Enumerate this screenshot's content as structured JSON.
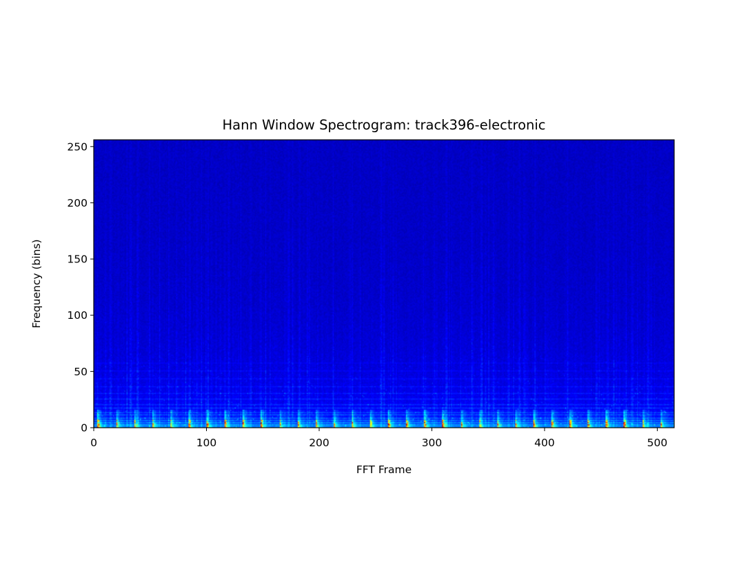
{
  "chart_data": {
    "type": "heatmap",
    "title": "Hann Window Spectrogram: track396-electronic",
    "xlabel": "FFT Frame",
    "ylabel": "Frequency (bins)",
    "xlim": [
      0,
      515
    ],
    "ylim": [
      0,
      256
    ],
    "xticks": [
      0,
      100,
      200,
      300,
      400,
      500
    ],
    "yticks": [
      0,
      50,
      100,
      150,
      200,
      250
    ],
    "colormap": "jet",
    "grid": false,
    "legend": "none",
    "n_frames": 515,
    "n_bins": 256,
    "beat_period_frames": 16.1,
    "beat_offset_frames": 3,
    "harmonic_bins": [
      2,
      4,
      6,
      8,
      11,
      13,
      17,
      20,
      25,
      30,
      36,
      43,
      50,
      57
    ],
    "description": "Energy concentrated in the lowest ~15 frequency bins with a periodic beat pattern; higher bins are mostly dark blue with faint vertical streaks."
  }
}
